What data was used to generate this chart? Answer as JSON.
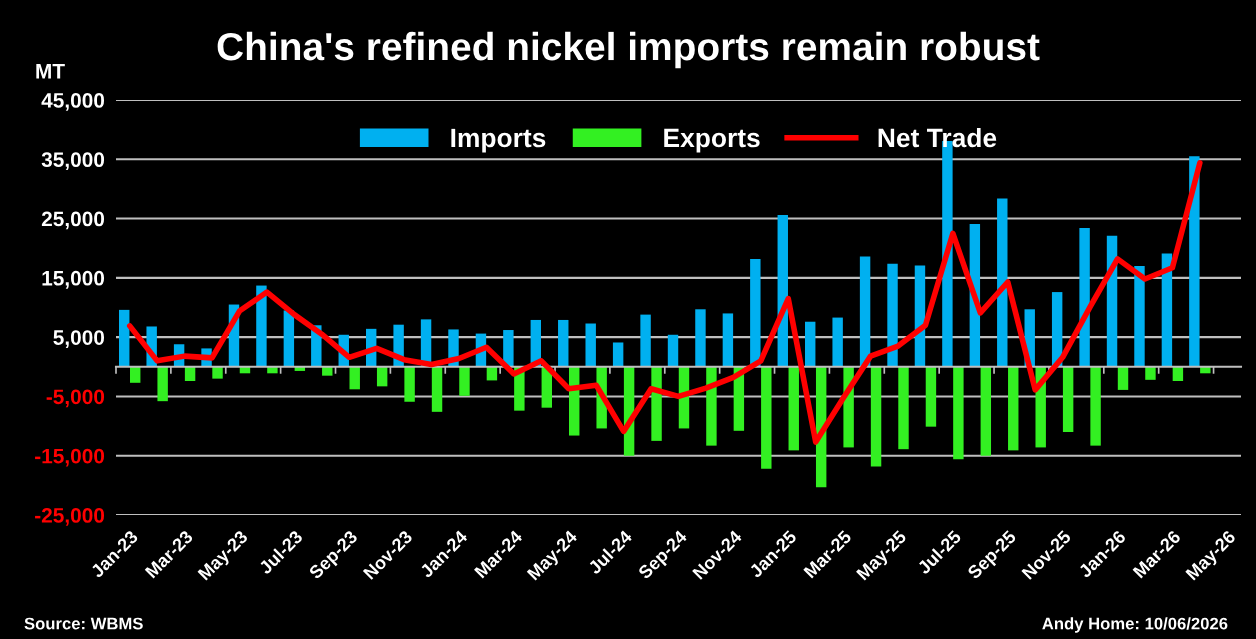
{
  "chart_data": {
    "type": "bar",
    "title": "China's refined nickel imports remain robust",
    "ylabel": "MT",
    "categories": [
      "Jan-23",
      null,
      "Mar-23",
      null,
      "May-23",
      null,
      "Jul-23",
      null,
      "Sep-23",
      null,
      "Nov-23",
      null,
      "Jan-24",
      null,
      "Mar-24",
      null,
      "May-24",
      null,
      "Jul-24",
      null,
      "Sep-24",
      null,
      "Nov-24",
      null,
      "Jan-25",
      null,
      "Mar-25",
      null,
      "May-25",
      null,
      "Jul-25",
      null,
      "Sep-25",
      null,
      "Nov-25",
      null,
      "Jan-26",
      null,
      "Mar-26",
      null,
      "May-26"
    ],
    "series": [
      {
        "name": "Imports",
        "type": "bar",
        "color": "#00b0f0",
        "values": [
          9600,
          6800,
          3800,
          3100,
          10500,
          13700,
          9500,
          7000,
          5400,
          6400,
          7100,
          8000,
          6300,
          5600,
          6200,
          7900,
          7900,
          7300,
          4100,
          8800,
          5400,
          9700,
          9000,
          18200,
          25600,
          7600,
          8300,
          18600,
          17400,
          17100,
          38100,
          24100,
          28400,
          9700,
          12600,
          23400,
          22100,
          17000,
          19100,
          35500,
          null
        ]
      },
      {
        "name": "Exports",
        "type": "bar",
        "color": "#33f022",
        "values": [
          -2700,
          -5800,
          -2400,
          -2000,
          -1100,
          -1100,
          -700,
          -1500,
          -3800,
          -3300,
          -5900,
          -7600,
          -4900,
          -2300,
          -7400,
          -6900,
          -11600,
          -10400,
          -15000,
          -12500,
          -10400,
          -13300,
          -10800,
          -17200,
          -14100,
          -20300,
          -13600,
          -16800,
          -13900,
          -10100,
          -15600,
          -15000,
          -14100,
          -13600,
          -11000,
          -13300,
          -3900,
          -2200,
          -2400,
          -1100,
          null
        ]
      },
      {
        "name": "Net Trade",
        "type": "line",
        "color": "#ff0000",
        "values": [
          6900,
          1000,
          1800,
          1500,
          9400,
          12600,
          8800,
          5500,
          1600,
          3100,
          1200,
          400,
          1400,
          3300,
          -1200,
          1000,
          -3700,
          -3100,
          -10900,
          -3700,
          -5000,
          -3600,
          -1800,
          1000,
          11500,
          -12700,
          -5300,
          1800,
          3500,
          7000,
          22500,
          9100,
          14300,
          -3900,
          1600,
          10100,
          18200,
          14800,
          16700,
          34400,
          null
        ]
      }
    ],
    "ylim": [
      -25000,
      45000
    ],
    "yticks": [
      {
        "value": 45000,
        "label": "45,000"
      },
      {
        "value": 35000,
        "label": "35,000"
      },
      {
        "value": 25000,
        "label": "25,000"
      },
      {
        "value": 15000,
        "label": "15,000"
      },
      {
        "value": 5000,
        "label": "5,000"
      },
      {
        "value": -5000,
        "label": "-5,000"
      },
      {
        "value": -15000,
        "label": "-15,000"
      },
      {
        "value": -25000,
        "label": "-25,000"
      }
    ],
    "grid": "y",
    "legend": "top",
    "annotations": [
      "Source: WBMS",
      "Andy Home: 10/06/2026"
    ]
  }
}
